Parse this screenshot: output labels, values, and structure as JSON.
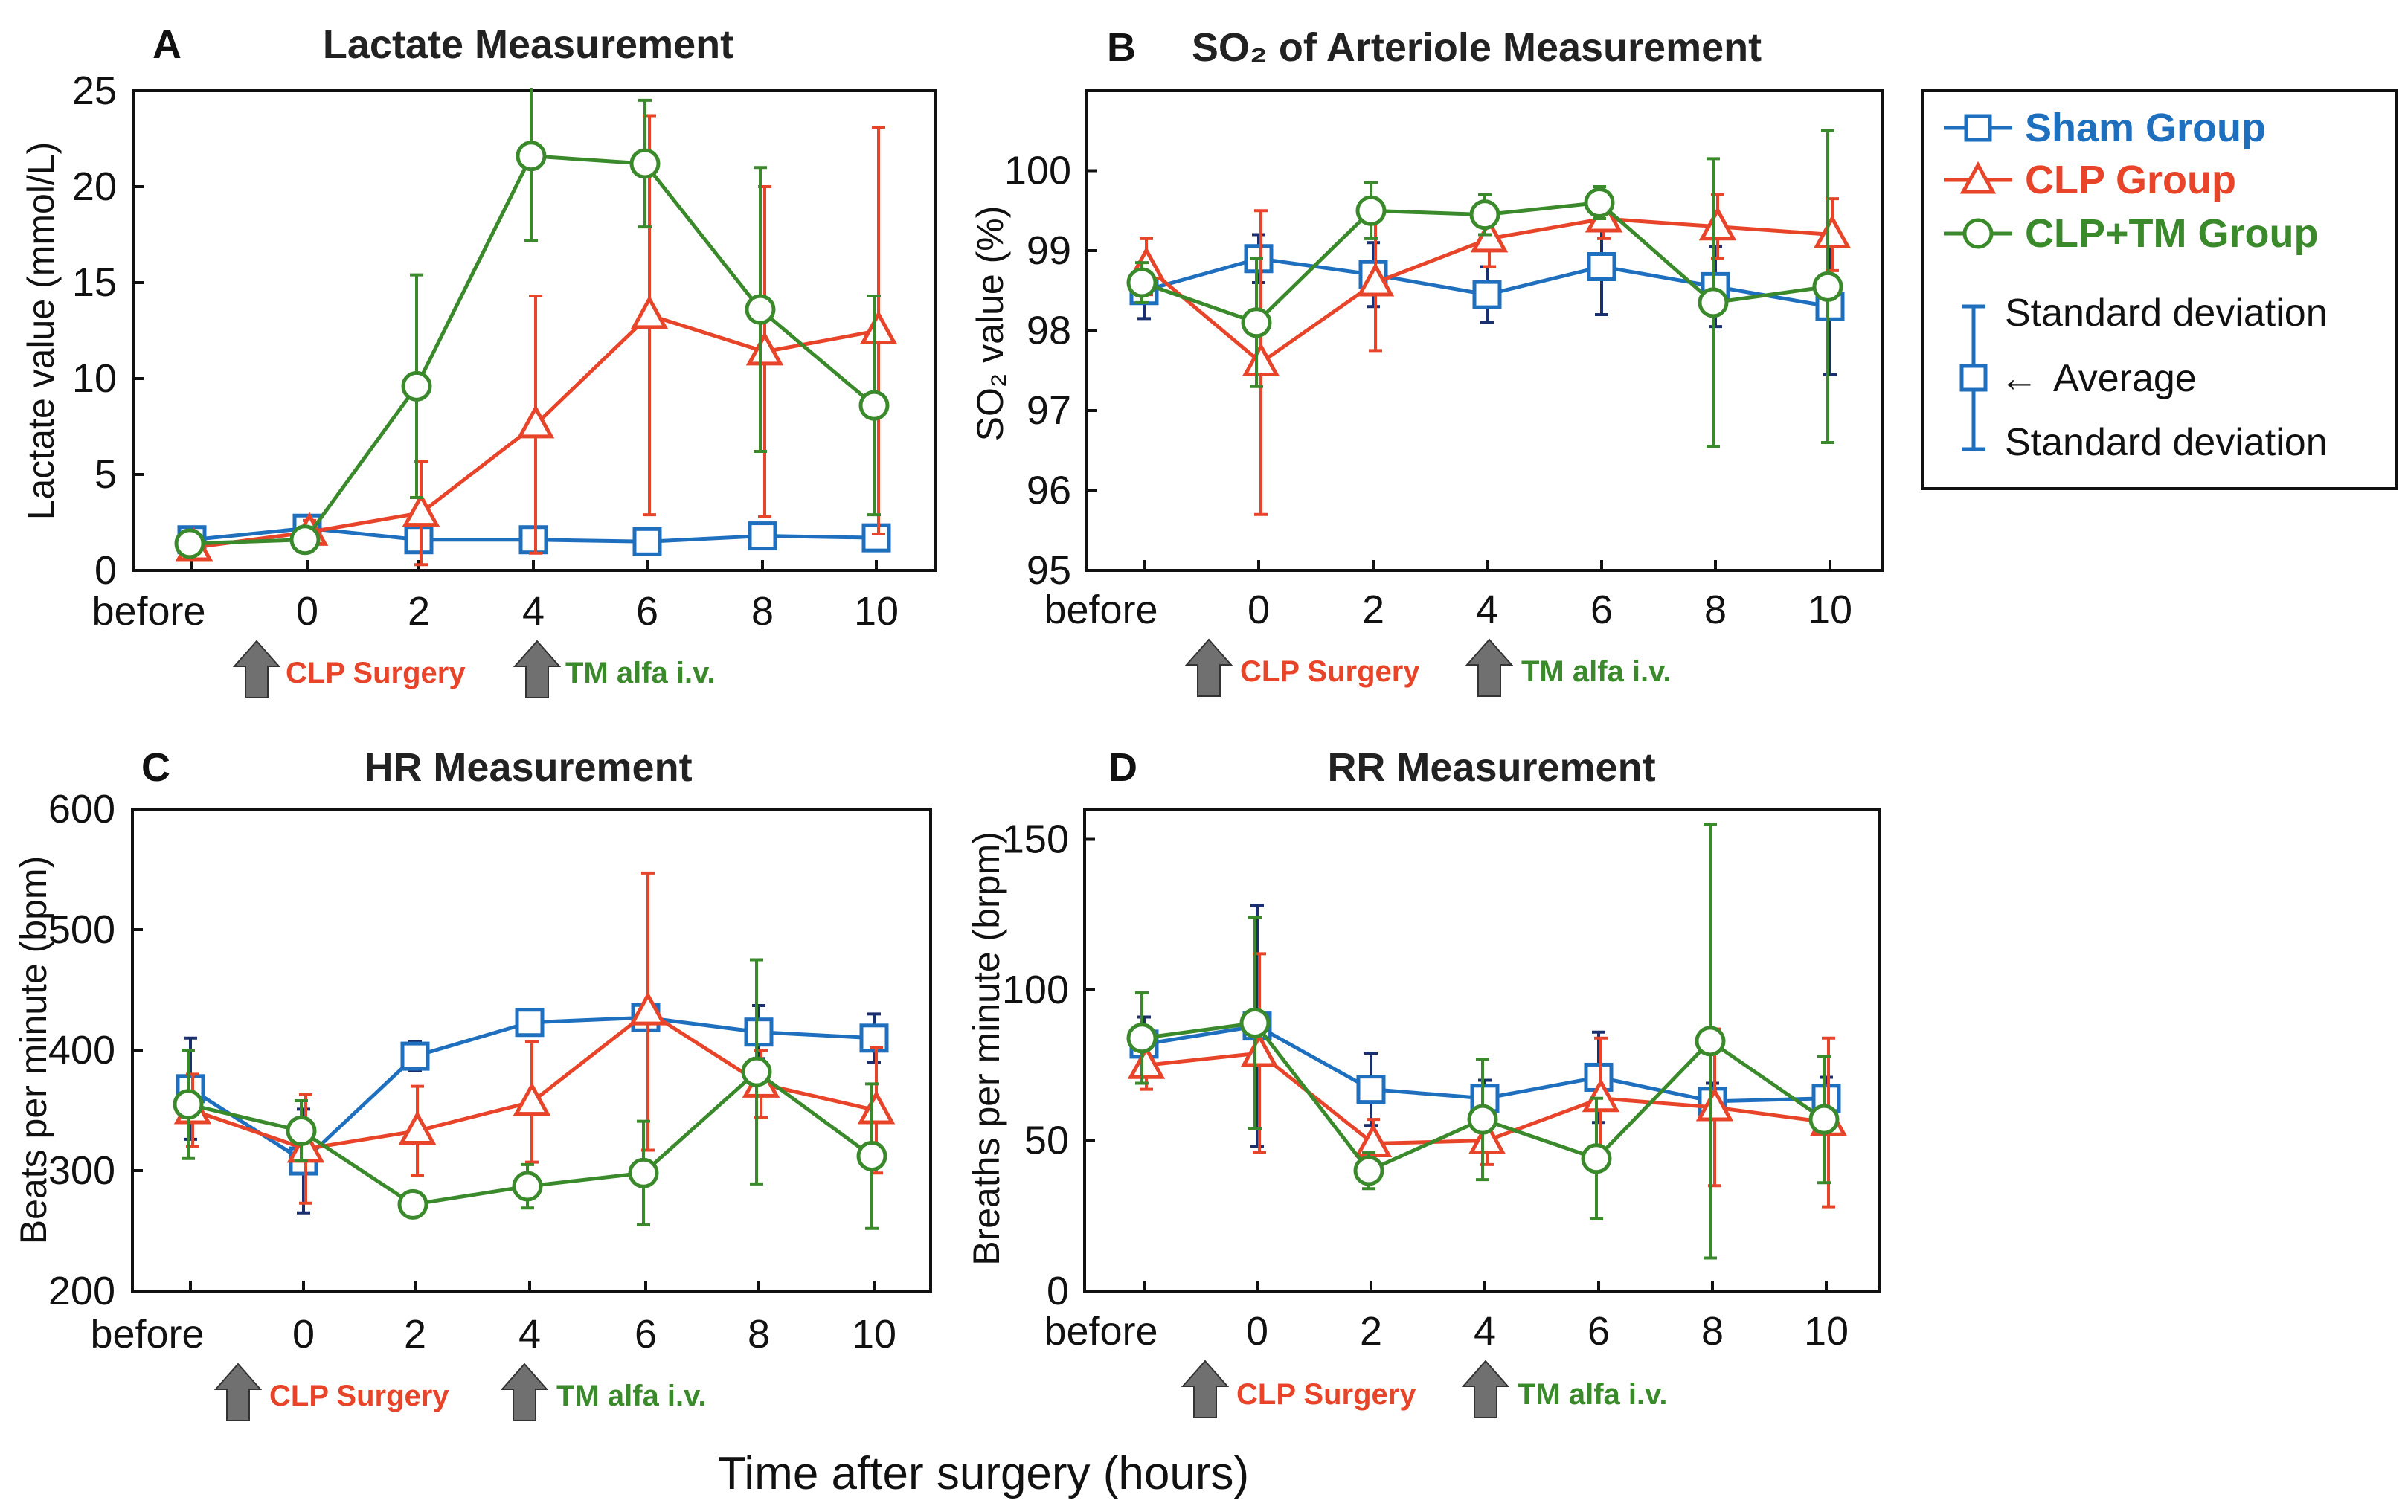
{
  "colors": {
    "sham": "#1f6fbf",
    "clp": "#e8442a",
    "clptm": "#3a8a2c",
    "sham_err": "#1a2f6e",
    "arrow": "#707070"
  },
  "legend": {
    "sham": "Sham Group",
    "clp": "CLP Group",
    "clptm": "CLP+TM Group",
    "sd_top": "Standard deviation",
    "avg": "Average",
    "sd_bottom": "Standard deviation",
    "arrow_glyph": "←"
  },
  "annotations": {
    "clp_surgery": "CLP Surgery",
    "tm_alfa": "TM alfa i.v."
  },
  "x_axis_label": "Time after surgery (hours)",
  "chart_data": [
    {
      "id": "A",
      "panel_label": "A",
      "type": "line",
      "title": "Lactate Measurement",
      "ylabel": "Lactate value (mmol/L)",
      "categories": [
        "before",
        "0",
        "2",
        "4",
        "6",
        "8",
        "10"
      ],
      "ylim": [
        0,
        25
      ],
      "yticks": [
        "0",
        "5",
        "10",
        "15",
        "20",
        "25"
      ],
      "series": [
        {
          "name": "Sham Group",
          "key": "sham",
          "values": [
            1.6,
            2.2,
            1.6,
            1.6,
            1.5,
            1.8,
            1.7
          ],
          "sd": [
            0.4,
            0.5,
            0.3,
            0.3,
            0.3,
            0.4,
            0.4
          ]
        },
        {
          "name": "CLP Group",
          "key": "clp",
          "values": [
            1.2,
            2.0,
            3.0,
            7.6,
            13.3,
            11.4,
            12.5
          ],
          "sd": [
            0.3,
            0.6,
            2.7,
            6.7,
            10.4,
            8.6,
            10.6
          ]
        },
        {
          "name": "CLP+TM Group",
          "key": "clptm",
          "values": [
            1.4,
            1.6,
            9.6,
            21.6,
            21.2,
            13.6,
            8.6
          ],
          "sd": [
            0.3,
            0.4,
            5.8,
            4.4,
            3.3,
            7.4,
            5.7
          ]
        }
      ]
    },
    {
      "id": "B",
      "panel_label": "B",
      "type": "line",
      "title": "SO₂ of Arteriole Measurement",
      "ylabel": "SO₂ value (%)",
      "categories": [
        "before",
        "0",
        "2",
        "4",
        "6",
        "8",
        "10"
      ],
      "ylim": [
        95,
        101
      ],
      "yticks": [
        "95",
        "96",
        "97",
        "98",
        "99",
        "100"
      ],
      "series": [
        {
          "name": "Sham Group",
          "key": "sham",
          "values": [
            98.5,
            98.9,
            98.7,
            98.45,
            98.8,
            98.55,
            98.3
          ],
          "sd": [
            0.35,
            0.3,
            0.4,
            0.35,
            0.6,
            0.5,
            0.85
          ]
        },
        {
          "name": "CLP Group",
          "key": "clp",
          "values": [
            98.8,
            97.6,
            98.6,
            99.15,
            99.4,
            99.3,
            99.2
          ],
          "sd": [
            0.35,
            1.9,
            0.85,
            0.35,
            0.25,
            0.4,
            0.45
          ]
        },
        {
          "name": "CLP+TM Group",
          "key": "clptm",
          "values": [
            98.6,
            98.1,
            99.5,
            99.45,
            99.6,
            98.35,
            98.55
          ],
          "sd": [
            0.25,
            0.8,
            0.35,
            0.25,
            0.2,
            1.8,
            1.95
          ]
        }
      ]
    },
    {
      "id": "C",
      "panel_label": "C",
      "type": "line",
      "title": "HR Measurement",
      "ylabel": "Beats per minute (bpm)",
      "categories": [
        "before",
        "0",
        "2",
        "4",
        "6",
        "8",
        "10"
      ],
      "ylim": [
        200,
        600
      ],
      "yticks": [
        "200",
        "300",
        "400",
        "500",
        "600"
      ],
      "series": [
        {
          "name": "Sham Group",
          "key": "sham",
          "values": [
            368,
            308,
            395,
            423,
            427,
            415,
            410
          ],
          "sd": [
            42,
            43,
            12,
            8,
            8,
            22,
            20
          ]
        },
        {
          "name": "CLP Group",
          "key": "clp",
          "values": [
            350,
            318,
            333,
            357,
            432,
            372,
            350
          ],
          "sd": [
            30,
            45,
            37,
            50,
            115,
            28,
            52
          ]
        },
        {
          "name": "CLP+TM Group",
          "key": "clptm",
          "values": [
            355,
            333,
            272,
            287,
            298,
            382,
            312
          ],
          "sd": [
            45,
            25,
            8,
            18,
            43,
            93,
            60
          ]
        }
      ]
    },
    {
      "id": "D",
      "panel_label": "D",
      "type": "line",
      "title": "RR Measurement",
      "ylabel": "Breaths per minute (brpm)",
      "categories": [
        "before",
        "0",
        "2",
        "4",
        "6",
        "8",
        "10"
      ],
      "ylim": [
        0,
        160
      ],
      "yticks": [
        "0",
        "50",
        "100",
        "150"
      ],
      "series": [
        {
          "name": "Sham Group",
          "key": "sham",
          "values": [
            82,
            88,
            67,
            64,
            71,
            63,
            64
          ],
          "sd": [
            9,
            40,
            12,
            6,
            15,
            6,
            7
          ]
        },
        {
          "name": "CLP Group",
          "key": "clp",
          "values": [
            75,
            79,
            49,
            50,
            64,
            61,
            56
          ],
          "sd": [
            8,
            33,
            8,
            8,
            20,
            26,
            28
          ]
        },
        {
          "name": "CLP+TM Group",
          "key": "clptm",
          "values": [
            84,
            89,
            40,
            57,
            44,
            83,
            57
          ],
          "sd": [
            15,
            35,
            6,
            20,
            20,
            72,
            21
          ]
        }
      ]
    }
  ]
}
